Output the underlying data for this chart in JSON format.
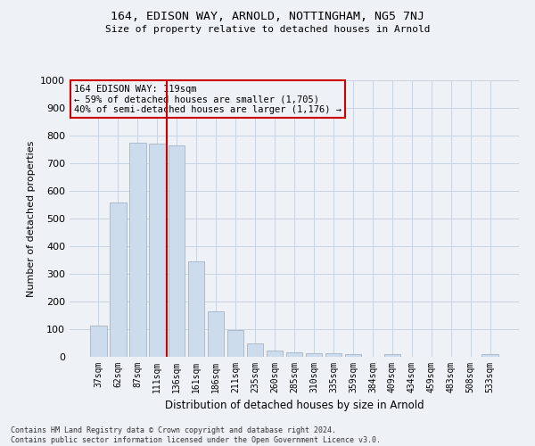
{
  "title": "164, EDISON WAY, ARNOLD, NOTTINGHAM, NG5 7NJ",
  "subtitle": "Size of property relative to detached houses in Arnold",
  "xlabel": "Distribution of detached houses by size in Arnold",
  "ylabel": "Number of detached properties",
  "footer_line1": "Contains HM Land Registry data © Crown copyright and database right 2024.",
  "footer_line2": "Contains public sector information licensed under the Open Government Licence v3.0.",
  "annotation_line1": "164 EDISON WAY: 119sqm",
  "annotation_line2": "← 59% of detached houses are smaller (1,705)",
  "annotation_line3": "40% of semi-detached houses are larger (1,176) →",
  "bar_color": "#ccdcec",
  "bar_edge_color": "#aabccc",
  "marker_line_color": "#cc0000",
  "annotation_box_edge_color": "#cc0000",
  "grid_color": "#c8d4e0",
  "background_color": "#eef2f6",
  "categories": [
    "37sqm",
    "62sqm",
    "87sqm",
    "111sqm",
    "136sqm",
    "161sqm",
    "186sqm",
    "211sqm",
    "235sqm",
    "260sqm",
    "285sqm",
    "310sqm",
    "335sqm",
    "359sqm",
    "384sqm",
    "409sqm",
    "434sqm",
    "459sqm",
    "483sqm",
    "508sqm",
    "533sqm"
  ],
  "values": [
    113,
    558,
    775,
    771,
    766,
    344,
    165,
    98,
    50,
    22,
    15,
    13,
    13,
    9,
    0,
    11,
    0,
    0,
    0,
    0,
    10
  ],
  "ylim": [
    0,
    1000
  ],
  "yticks": [
    0,
    100,
    200,
    300,
    400,
    500,
    600,
    700,
    800,
    900,
    1000
  ]
}
